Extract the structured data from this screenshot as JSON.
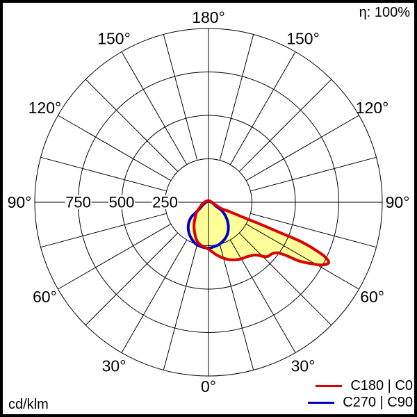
{
  "page": {
    "eta_label": "η: 100%",
    "unit_label": "cd/klm"
  },
  "legend": [
    {
      "id": "c180_c0",
      "label": "C180 | C0",
      "color": "#dc0000"
    },
    {
      "id": "c270_c90",
      "label": "C270 | C90",
      "color": "#0000c8"
    }
  ],
  "chart_data": {
    "type": "polar",
    "subtype": "photometric-luminous-intensity-distribution",
    "unit": "cd/klm",
    "efficiency_percent": 100,
    "rmax": 1000,
    "radial_ticks": [
      250,
      500,
      750,
      1000
    ],
    "radial_label_values": [
      250,
      500,
      750
    ],
    "angle_labels_deg": [
      0,
      30,
      60,
      90,
      120,
      150,
      180
    ],
    "angle_grid_step_deg": 15,
    "grid_color": "#000000",
    "fill_color": "#ffff99",
    "legend_position": "bottom-right",
    "series": [
      {
        "id": "c180_c0",
        "name": "C180 | C0",
        "color": "#dc0000",
        "points_gamma_value": [
          [
            180,
            9
          ],
          [
            150,
            9
          ],
          [
            120,
            11
          ],
          [
            100,
            15
          ],
          [
            90,
            20
          ],
          [
            78,
            30
          ],
          [
            68,
            47
          ],
          [
            64,
            89
          ],
          [
            66,
            131
          ],
          [
            66.5,
            218
          ],
          [
            67,
            305
          ],
          [
            67,
            391
          ],
          [
            67,
            478
          ],
          [
            67,
            565
          ],
          [
            66.5,
            631
          ],
          [
            66,
            668
          ],
          [
            65,
            737
          ],
          [
            63.3,
            774
          ],
          [
            61,
            745
          ],
          [
            59,
            685
          ],
          [
            57,
            619
          ],
          [
            55.7,
            547
          ],
          [
            53.9,
            495
          ],
          [
            51.2,
            472
          ],
          [
            47.5,
            462
          ],
          [
            45.4,
            444
          ],
          [
            41.8,
            408
          ],
          [
            36.2,
            386
          ],
          [
            28.7,
            374
          ],
          [
            21.7,
            357
          ],
          [
            15.9,
            337
          ],
          [
            9,
            308
          ],
          [
            0,
            270
          ],
          [
            -6,
            258
          ],
          [
            -11,
            249
          ],
          [
            -17,
            230
          ],
          [
            -25,
            190
          ],
          [
            -33,
            153
          ],
          [
            -45,
            103
          ],
          [
            -52,
            80
          ],
          [
            -60,
            56
          ],
          [
            -70,
            42
          ],
          [
            -80,
            32
          ],
          [
            -90,
            24
          ],
          [
            -110,
            16
          ],
          [
            -135,
            11
          ],
          [
            -160,
            9
          ]
        ]
      },
      {
        "id": "c270_c90",
        "name": "C270 | C90",
        "color": "#0000c8",
        "points_gamma_value": [
          [
            180,
            6
          ],
          [
            150,
            6
          ],
          [
            120,
            9
          ],
          [
            90,
            15
          ],
          [
            80,
            25
          ],
          [
            63,
            45
          ],
          [
            57,
            95
          ],
          [
            47,
            146
          ],
          [
            37,
            190
          ],
          [
            27,
            224
          ],
          [
            15,
            249
          ],
          [
            4,
            261
          ],
          [
            0,
            264
          ],
          [
            -6,
            262
          ],
          [
            -17,
            251
          ],
          [
            -29,
            220
          ],
          [
            -40,
            182
          ],
          [
            -49,
            132
          ],
          [
            -53,
            67
          ],
          [
            -62,
            40
          ],
          [
            -75,
            22
          ],
          [
            -90,
            14
          ],
          [
            -120,
            8
          ],
          [
            -150,
            6
          ]
        ]
      }
    ]
  }
}
